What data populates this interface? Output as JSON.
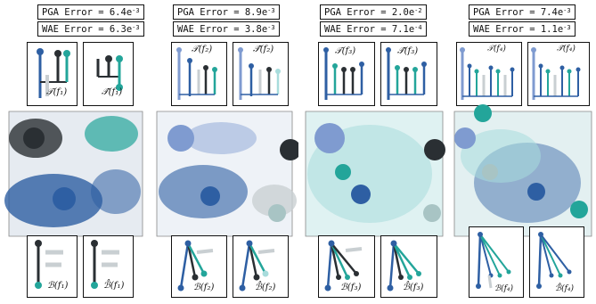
{
  "panels": [
    {
      "pga": {
        "label": "PGA Error = ",
        "mant": "6.4e",
        "exp": "-3"
      },
      "wae": {
        "label": "WAE Error = ",
        "mant": "6.3e",
        "exp": "-3"
      },
      "tree_label": "𝒯(f₁)",
      "tree_hat_label": "𝒯̂(f₁)",
      "branch_label": "ℬ(f₁)",
      "branch_hat_label": "ℬ̂(f₁)"
    },
    {
      "pga": {
        "label": "PGA Error = ",
        "mant": "8.9e",
        "exp": "-3"
      },
      "wae": {
        "label": "WAE Error = ",
        "mant": "3.8e",
        "exp": "-3"
      },
      "tree_label": "𝒯(f₂)",
      "tree_hat_label": "𝒯̂(f₂)",
      "branch_label": "ℬ(f₂)",
      "branch_hat_label": "ℬ̂(f₂)"
    },
    {
      "pga": {
        "label": "PGA Error = ",
        "mant": "2.0e",
        "exp": "-2"
      },
      "wae": {
        "label": "WAE Error = ",
        "mant": "7.1e",
        "exp": "-4"
      },
      "tree_label": "𝒯(f₃)",
      "tree_hat_label": "𝒯̂(f₃)",
      "branch_label": "ℬ(f₃)",
      "branch_hat_label": "ℬ̂(f₃)"
    },
    {
      "pga": {
        "label": "PGA Error = ",
        "mant": "7.4e",
        "exp": "-3"
      },
      "wae": {
        "label": "WAE Error = ",
        "mant": "1.1e",
        "exp": "-3"
      },
      "tree_label": "𝒯(f₄)",
      "tree_hat_label": "𝒯̂(f₄)",
      "branch_label": "ℬ(f₄)",
      "branch_hat_label": "ℬ̂(f₄)"
    }
  ],
  "colors": {
    "blue": "#2e5fa3",
    "light_blue": "#7f9bd0",
    "teal": "#23a59a",
    "dark": "#2a2f33",
    "gray": "#c9cfd2",
    "cyan_fog": "#a8dcdc"
  }
}
